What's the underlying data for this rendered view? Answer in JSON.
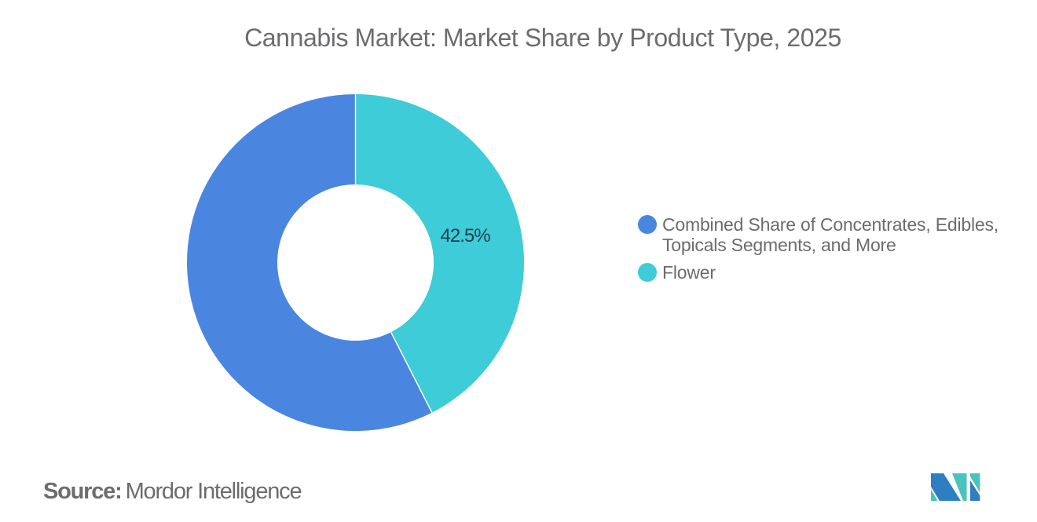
{
  "title": "Cannabis Market: Market Share by Product Type, 2025",
  "chart_data": {
    "type": "pie",
    "subtype": "donut",
    "title": "Cannabis Market: Market Share by Product Type, 2025",
    "slices": [
      {
        "name": "Combined Share of Concentrates, Edibles, Topicals Segments, and More",
        "value": 57.5,
        "color": "#4a86e0",
        "data_label": ""
      },
      {
        "name": "Flower",
        "value": 42.5,
        "color": "#3dccd8",
        "data_label": "42.5%"
      }
    ],
    "start_angle_deg": 153,
    "inner_radius_ratio": 0.464,
    "legend_position": "right",
    "background": "#ffffff"
  },
  "legend": {
    "items": [
      {
        "label": "Combined Share of Concentrates, Edibles, Topicals Segments, and More",
        "color": "#4a86e0"
      },
      {
        "label": "Flower",
        "color": "#3dccd8"
      }
    ]
  },
  "source": {
    "label": "Source:",
    "value": "Mordor Intelligence"
  },
  "logo": {
    "name": "mordor-intelligence-logo",
    "blue": "#2e7ec2",
    "teal": "#4ac2be"
  }
}
